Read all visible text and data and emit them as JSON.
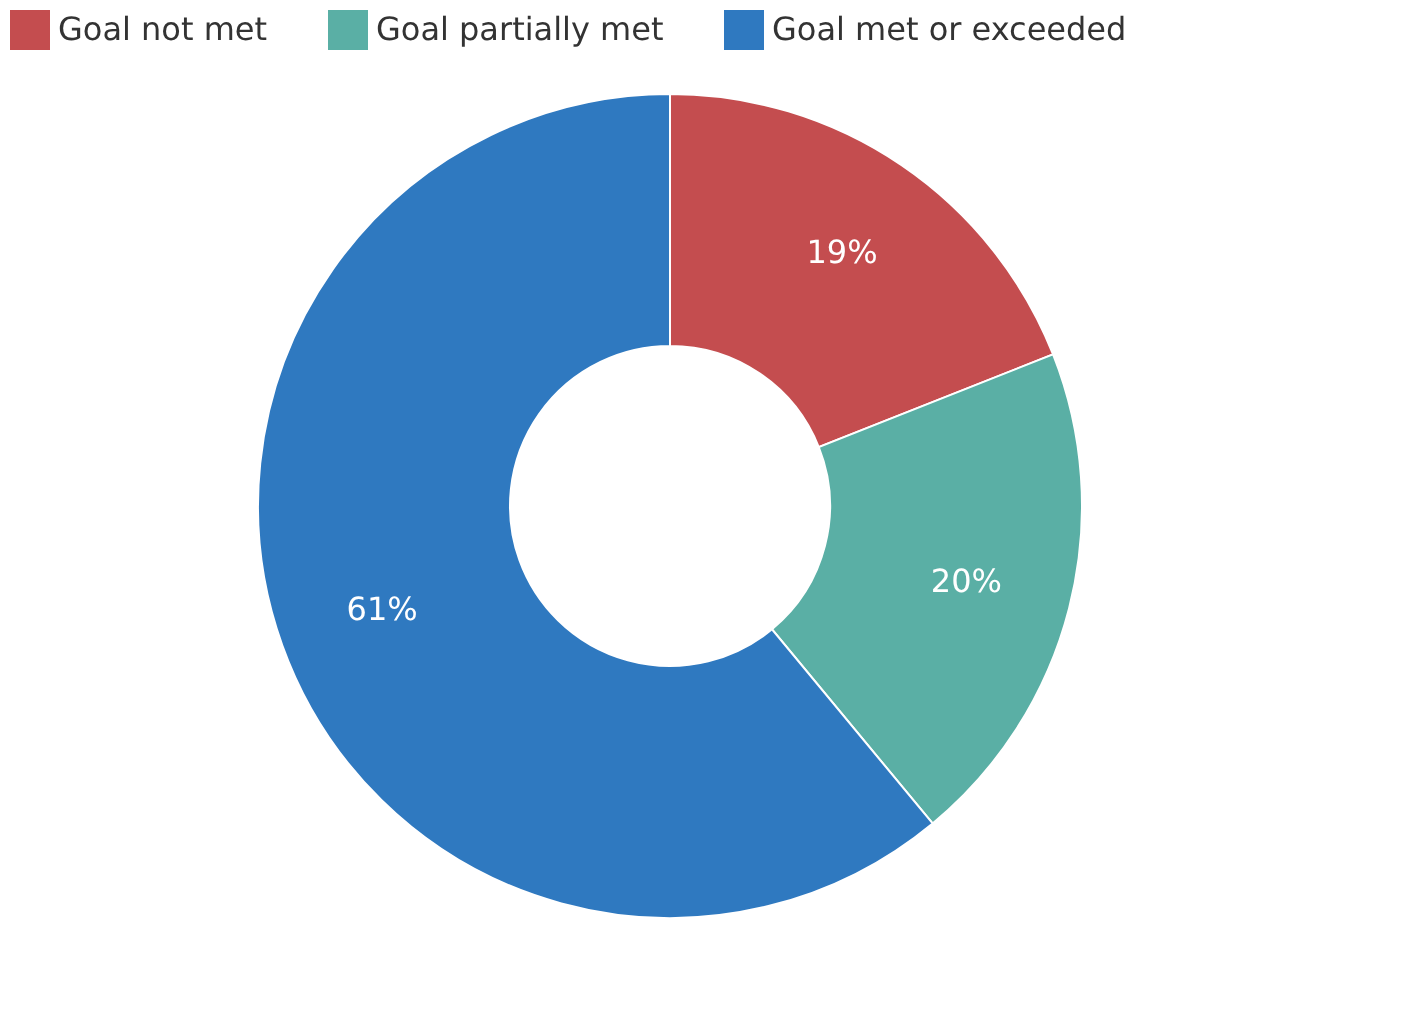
{
  "chart_data": {
    "type": "donut",
    "categories": [
      "Goal not met",
      "Goal partially met",
      "Goal met or exceeded"
    ],
    "values": [
      19,
      20,
      61
    ],
    "colors": [
      "#c44d4f",
      "#5aafa5",
      "#2f79c0"
    ],
    "value_labels": [
      "19%",
      "20%",
      "61%"
    ],
    "legend": "top"
  }
}
